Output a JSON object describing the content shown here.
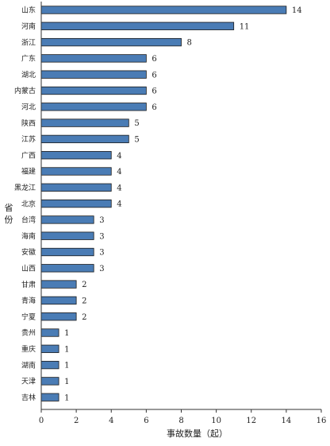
{
  "chart_data": {
    "type": "bar",
    "orientation": "horizontal",
    "categories": [
      "山东",
      "河南",
      "浙江",
      "广东",
      "湖北",
      "内蒙古",
      "河北",
      "陕西",
      "江苏",
      "广西",
      "福建",
      "黑龙江",
      "北京",
      "台湾",
      "海南",
      "安徽",
      "山西",
      "甘肃",
      "青海",
      "宁夏",
      "贵州",
      "重庆",
      "湖南",
      "天津",
      "吉林"
    ],
    "values": [
      14,
      11,
      8,
      6,
      6,
      6,
      6,
      5,
      5,
      4,
      4,
      4,
      4,
      3,
      3,
      3,
      3,
      2,
      2,
      2,
      1,
      1,
      1,
      1,
      1
    ],
    "xlabel": "事故数量（起）",
    "ylabel": "省份",
    "xlim": [
      0,
      16
    ],
    "xticks": [
      0,
      2,
      4,
      6,
      8,
      10,
      12,
      14,
      16
    ],
    "grid": false,
    "bar_color": "#4a7cb5"
  }
}
